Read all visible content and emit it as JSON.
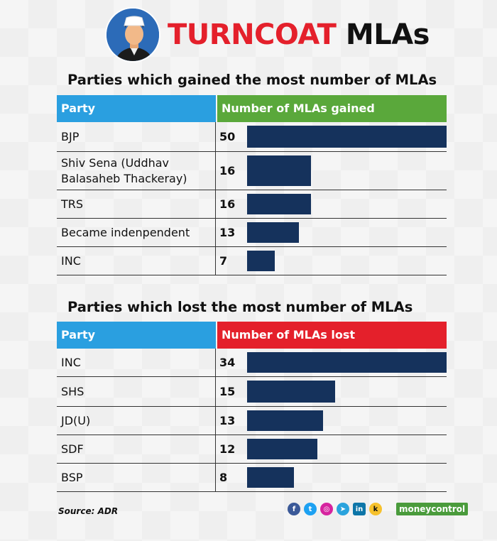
{
  "header": {
    "title_accent": "TURNCOAT",
    "title_rest": "MLAs"
  },
  "chart_data": [
    {
      "type": "bar",
      "title": "Parties which gained the most number of MLAs",
      "header_party": "Party",
      "header_value": "Number of MLAs gained",
      "header_color": "#5aa83b",
      "categories": [
        "BJP",
        "Shiv Sena (Uddhav Balasaheb Thackeray)",
        "TRS",
        "Became indenpendent",
        "INC"
      ],
      "values": [
        50,
        16,
        16,
        13,
        7
      ],
      "xlim": [
        0,
        50
      ]
    },
    {
      "type": "bar",
      "title": "Parties which lost the most number of MLAs",
      "header_party": "Party",
      "header_value": "Number of MLAs lost",
      "header_color": "#e4202b",
      "categories": [
        "INC",
        "SHS",
        "JD(U)",
        "SDF",
        "BSP"
      ],
      "values": [
        34,
        15,
        13,
        12,
        8
      ],
      "xlim": [
        0,
        34
      ]
    }
  ],
  "footer": {
    "source": "Source: ADR",
    "social_icons": [
      "facebook-icon",
      "twitter-icon",
      "instagram-icon",
      "telegram-icon",
      "linkedin-icon",
      "koo-icon"
    ],
    "brand": "moneycontrol"
  },
  "colors": {
    "bar": "#15325c",
    "party_header": "#2a9fe0",
    "accent_red": "#e4202b"
  }
}
